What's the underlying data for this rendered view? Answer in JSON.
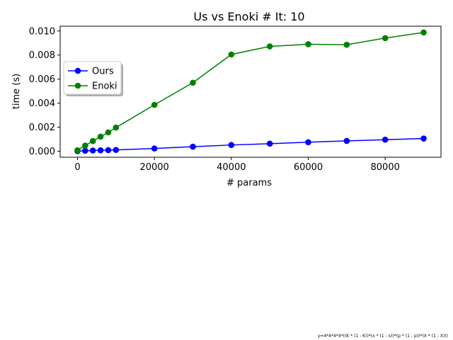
{
  "chart_data": {
    "type": "line",
    "title": "Us vs Enoki # It: 10",
    "xlabel": "# params",
    "ylabel": "time (s)",
    "xlim": [
      -4500,
      94500
    ],
    "ylim": [
      -0.0005,
      0.0104
    ],
    "x_ticks": [
      0,
      20000,
      40000,
      60000,
      80000
    ],
    "x_tick_labels": [
      "0",
      "20000",
      "40000",
      "60000",
      "80000"
    ],
    "y_ticks": [
      0.0,
      0.002,
      0.004,
      0.006,
      0.008,
      0.01
    ],
    "y_tick_labels": [
      "0.000",
      "0.002",
      "0.004",
      "0.006",
      "0.008",
      "0.010"
    ],
    "x": [
      0,
      2000,
      4000,
      6000,
      8000,
      10000,
      20000,
      30000,
      40000,
      50000,
      60000,
      70000,
      80000,
      90000
    ],
    "series": [
      {
        "name": "Ours",
        "color": "#0000ff",
        "values": [
          1e-05,
          4e-05,
          6e-05,
          8e-05,
          9e-05,
          0.00011,
          0.00023,
          0.00038,
          0.00052,
          0.00063,
          0.00075,
          0.00086,
          0.00096,
          0.00106
        ]
      },
      {
        "name": "Enoki",
        "color": "#008000",
        "values": [
          8e-05,
          0.00047,
          0.00085,
          0.00121,
          0.00157,
          0.00197,
          0.00386,
          0.0057,
          0.00805,
          0.00872,
          0.0089,
          0.00886,
          0.00941,
          0.00988
        ]
      }
    ],
    "legend_position": "upper-left",
    "grid": false
  },
  "footnote": "y=4*4*4*4*((K * (1 - K))*(x * (1 - x))*(p * (1 - p))*(X * (1 - X)))"
}
